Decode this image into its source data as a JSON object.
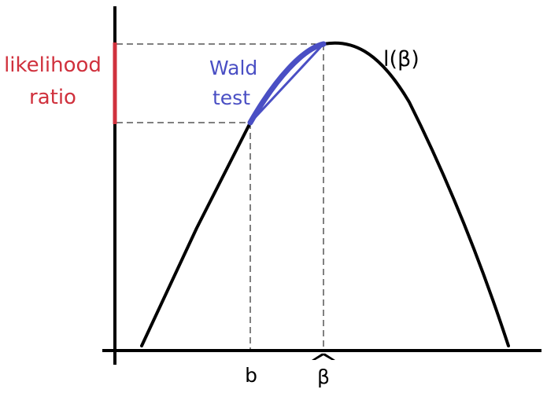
{
  "labels": {
    "likelihood_line1": "likelihood",
    "likelihood_line2": "ratio",
    "wald_line1": "Wald",
    "wald_line2": "test",
    "function_label": "l(β)",
    "b_tick": "b",
    "beta_hat_symbol": "β",
    "beta_hat_accent": "^"
  },
  "colors": {
    "curve": "#000000",
    "likelihood_ratio": "#d0313d",
    "wald_test": "#4a4fc4",
    "guide_lines": "#000000"
  }
}
